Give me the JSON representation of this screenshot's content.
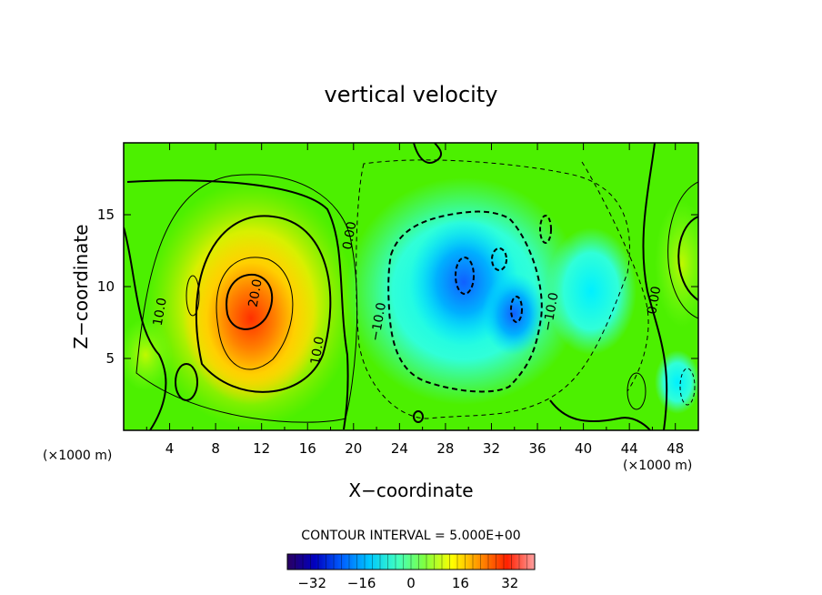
{
  "chart_data": {
    "type": "heatmap",
    "title": "vertical velocity",
    "xlabel": "X−coordinate",
    "ylabel": "Z−coordinate",
    "x_unit_left": "(×1000 m)",
    "x_unit_right": "(×1000 m)",
    "xlim": [
      0,
      50
    ],
    "ylim": [
      0,
      20
    ],
    "x_ticks": [
      4,
      8,
      12,
      16,
      20,
      24,
      28,
      32,
      36,
      40,
      44,
      48
    ],
    "y_ticks": [
      5,
      10,
      15
    ],
    "contour_interval_text": "CONTOUR INTERVAL = 5.000E+00",
    "colorbar": {
      "range": [
        -40,
        40
      ],
      "ticks": [
        -32,
        -16,
        0,
        16,
        32
      ],
      "colors": [
        "#2a0060",
        "#0000c0",
        "#0060ff",
        "#00c8ff",
        "#40ffc0",
        "#80ff40",
        "#ffff00",
        "#ff9000",
        "#ff2000",
        "#ffa0a0"
      ]
    },
    "cells": [
      {
        "x": 10,
        "z": 9,
        "value": 22
      },
      {
        "x": 12,
        "z": 7,
        "value": 20
      },
      {
        "x": 12,
        "z": 12,
        "value": 15
      },
      {
        "x": 14,
        "z": 8,
        "value": 12
      },
      {
        "x": 29,
        "z": 10.5,
        "value": -14
      },
      {
        "x": 34,
        "z": 8,
        "value": -12
      },
      {
        "x": 30,
        "z": 9,
        "value": -8
      },
      {
        "x": 4,
        "z": 10,
        "value": 4
      },
      {
        "x": 48,
        "z": 12,
        "value": 3
      },
      {
        "x": 44,
        "z": 3,
        "value": 2
      }
    ],
    "contour_labels": [
      {
        "text": "10.0",
        "x": 3.5,
        "z": 8.2
      },
      {
        "text": "20.0",
        "x": 11.8,
        "z": 9.5
      },
      {
        "text": "10.0",
        "x": 17.2,
        "z": 5.5
      },
      {
        "text": "0.00",
        "x": 20,
        "z": 13.5
      },
      {
        "text": "−10.0",
        "x": 22.5,
        "z": 7.5
      },
      {
        "text": "−10.0",
        "x": 37.5,
        "z": 8.2
      },
      {
        "text": "0.00",
        "x": 46.5,
        "z": 9.0
      }
    ]
  }
}
